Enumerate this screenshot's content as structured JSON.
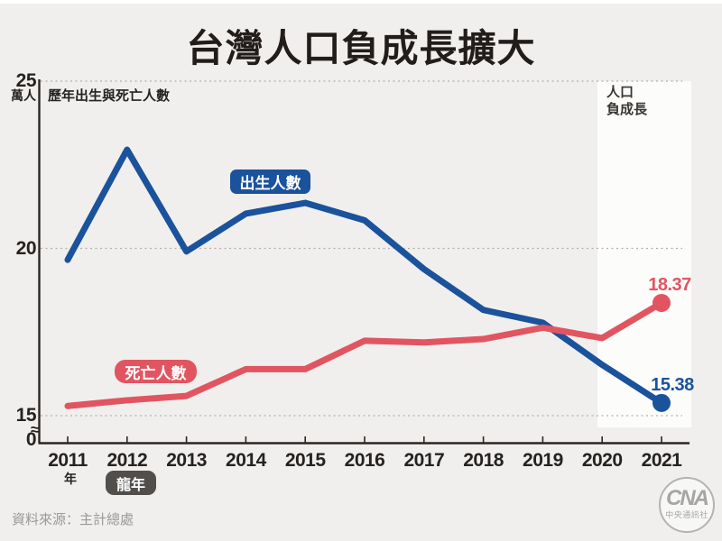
{
  "title": "台灣人口負成長擴大",
  "source": "資料來源：主計總處",
  "colors": {
    "births": "#1a529c",
    "deaths": "#e15561",
    "background": "#f0efed",
    "highlight_band": "#fcfcfb",
    "axis": "#2b2623",
    "gridline": "#b3b0ad"
  },
  "chart": {
    "subtitle": "歷年出生與死亡人數",
    "unit_label": "萬人",
    "break_symbol": "≈",
    "y_axis": [
      {
        "label": "25",
        "value": 25
      },
      {
        "label": "20",
        "value": 20
      },
      {
        "label": "15",
        "value": 15
      },
      {
        "label": "0",
        "value": 0
      }
    ],
    "year_suffix": "年",
    "dragon_year_badge": "龍年",
    "births_badge": "出生人數",
    "deaths_badge": "死亡人數",
    "negative_growth_label_line1": "人口",
    "negative_growth_label_line2": "負成長",
    "end_labels": {
      "deaths": "18.37",
      "births": "15.38"
    }
  },
  "chart_data": {
    "type": "line",
    "title": "台灣人口負成長擴大",
    "subtitle": "歷年出生與死亡人數",
    "categories": [
      "2011",
      "2012",
      "2013",
      "2014",
      "2015",
      "2016",
      "2017",
      "2018",
      "2019",
      "2020",
      "2021"
    ],
    "series": [
      {
        "name": "出生人數",
        "color": "#1a529c",
        "values": [
          19.66,
          22.95,
          19.91,
          21.04,
          21.36,
          20.84,
          19.38,
          18.16,
          17.78,
          16.52,
          15.38
        ]
      },
      {
        "name": "死亡人數",
        "color": "#e15561",
        "values": [
          15.29,
          15.46,
          15.59,
          16.39,
          16.39,
          17.24,
          17.19,
          17.29,
          17.63,
          17.32,
          18.37
        ]
      }
    ],
    "xlabel": "年",
    "ylabel": "萬人",
    "y_ticks": [
      25,
      20,
      15,
      0
    ],
    "ylim_display": [
      15,
      25
    ],
    "axis_break_between": [
      0,
      15
    ],
    "grid": "horizontal dotted",
    "legend_position": "inline badges on lines",
    "highlight_region": {
      "from_year": "2020",
      "to_year": "2021",
      "label": "人口負成長"
    },
    "annotations": [
      {
        "series": "死亡人數",
        "year": "2021",
        "text": "18.37"
      },
      {
        "series": "出生人數",
        "year": "2021",
        "text": "15.38"
      },
      {
        "year": "2012",
        "text": "龍年"
      }
    ]
  },
  "logo": {
    "text": "CNA",
    "subtext": "中央通訊社"
  }
}
